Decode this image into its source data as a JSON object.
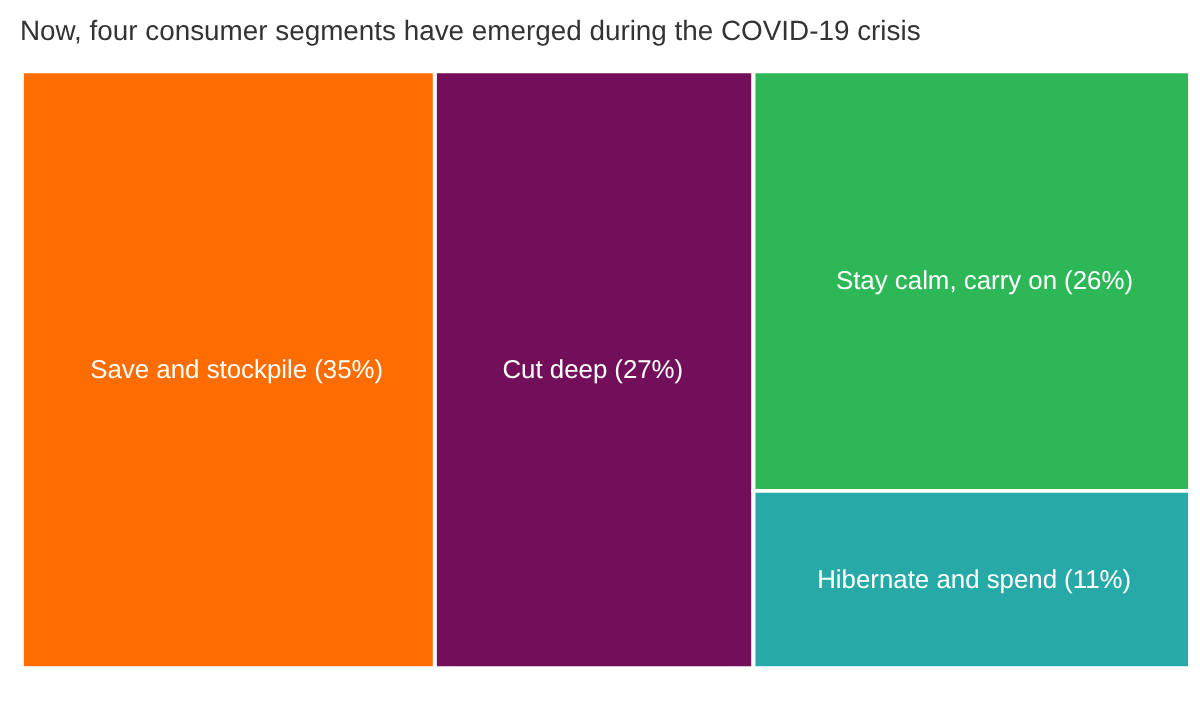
{
  "chart_data": {
    "type": "other",
    "title": "Now, four consumer segments have emerged during the COVID-19 crisis",
    "categories": [
      "Save and stockpile",
      "Cut deep",
      "Stay calm, carry on",
      "Hibernate and spend"
    ],
    "values": [
      35,
      27,
      26,
      11
    ],
    "value_labels": [
      "(35%)",
      "(27%)",
      "(26%)",
      "(11%)"
    ],
    "colors": [
      "#ff6d00",
      "#720e5a",
      "#2db757",
      "#27aaa7"
    ]
  }
}
